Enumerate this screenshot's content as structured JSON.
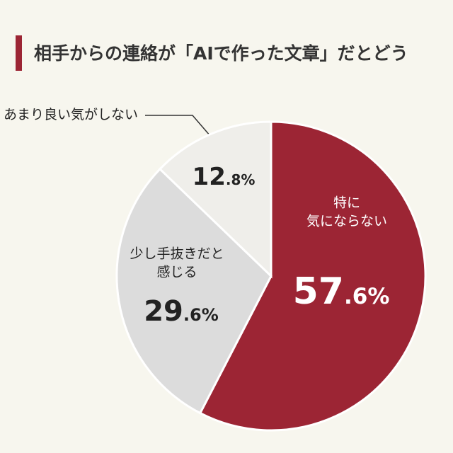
{
  "chart_data": {
    "type": "pie",
    "title": "相手からの連絡が「AIで作った文章」だとどう",
    "categories": [
      "特に\n気にならない",
      "少し手抜きだと\n感じる",
      "あまり良い気がしない"
    ],
    "values": [
      57.6,
      29.6,
      12.8
    ],
    "value_labels": [
      "57.6%",
      "29.6%",
      "12.8%"
    ],
    "colors": [
      "#9c2534",
      "#dcdcdc",
      "#efeeea"
    ]
  }
}
